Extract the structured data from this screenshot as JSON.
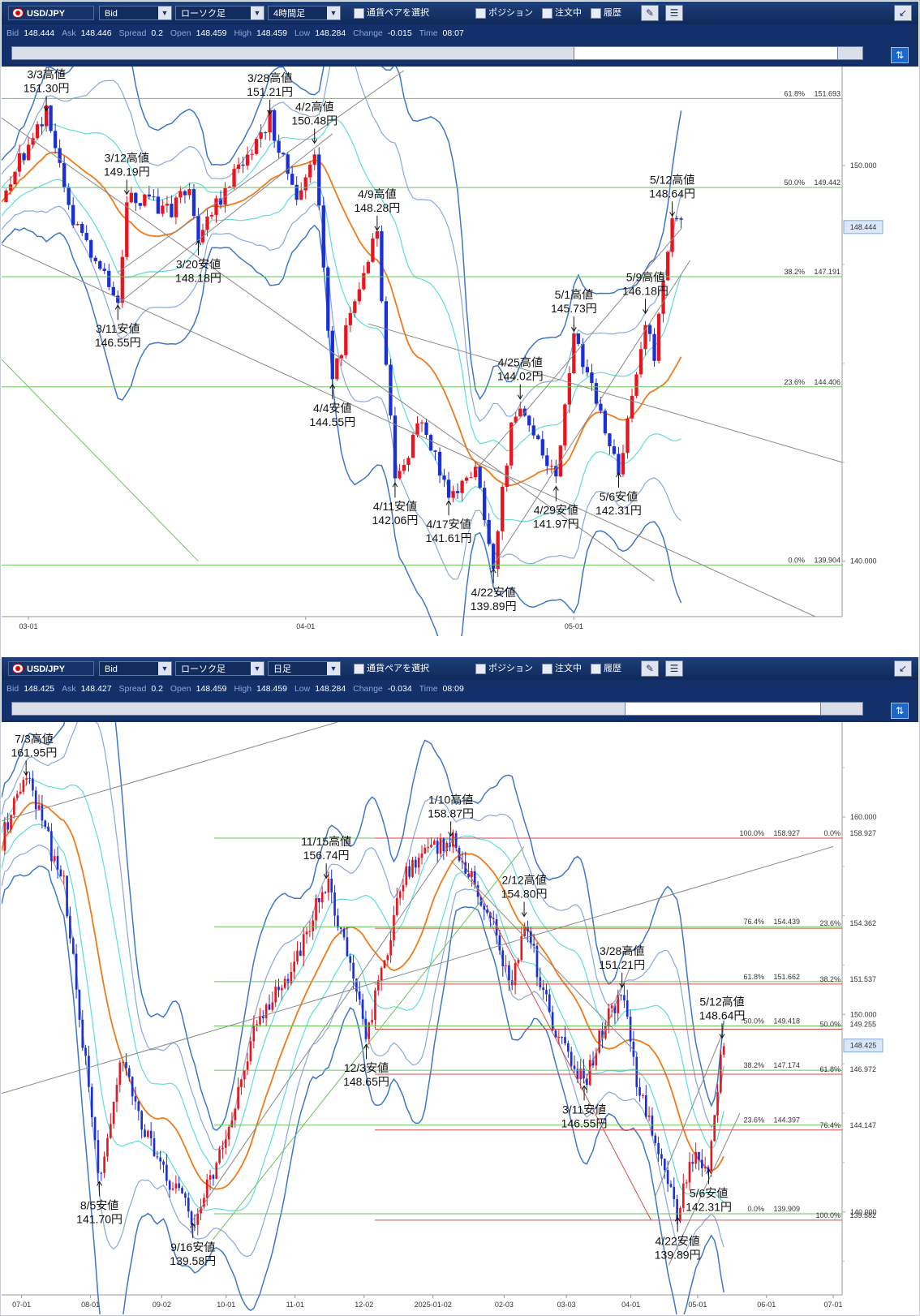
{
  "panels": [
    {
      "id": "top",
      "toolbar": {
        "pair": "USD/JPY",
        "price_type": "Bid",
        "chart_style": "ローソク足",
        "timeframe": "4時間足",
        "pair_select_label": "通貨ペアを選択",
        "position_label": "ポジション",
        "orders_label": "注文中",
        "history_label": "履歴"
      },
      "quote": {
        "bid_label": "Bid",
        "bid": "148.444",
        "ask_label": "Ask",
        "ask": "148.446",
        "spread_label": "Spread",
        "spread": "0.2",
        "open_label": "Open",
        "open": "148.459",
        "high_label": "High",
        "high": "148.459",
        "low_label": "Low",
        "low": "148.284",
        "change_label": "Change",
        "change": "-0.015",
        "time_label": "Time",
        "time": "08:07"
      },
      "scroll_position": {
        "start": 0.66,
        "end": 0.97
      }
    },
    {
      "id": "bottom",
      "toolbar": {
        "pair": "USD/JPY",
        "price_type": "Bid",
        "chart_style": "ローソク足",
        "timeframe": "日足",
        "pair_select_label": "通貨ペアを選択",
        "position_label": "ポジション",
        "orders_label": "注文中",
        "history_label": "履歴"
      },
      "quote": {
        "bid_label": "Bid",
        "bid": "148.425",
        "ask_label": "Ask",
        "ask": "148.427",
        "spread_label": "Spread",
        "spread": "0.2",
        "open_label": "Open",
        "open": "148.459",
        "high_label": "High",
        "high": "148.459",
        "low_label": "Low",
        "low": "148.284",
        "change_label": "Change",
        "change": "-0.034",
        "time_label": "Time",
        "time": "08:09"
      },
      "scroll_position": {
        "start": 0.72,
        "end": 0.95
      }
    }
  ],
  "chart_data": [
    {
      "type": "candlestick",
      "timeframe": "4時間足",
      "title": "",
      "ylim": [
        138.6,
        152.5
      ],
      "x_range": [
        "2025-02-26",
        "2025-05-31"
      ],
      "x_ticks": [
        "03-01",
        "04-01",
        "05-01"
      ],
      "x_tick_dates": [
        "2025-03-01",
        "2025-04-01",
        "2025-05-01"
      ],
      "y_ticks": [
        "150.000",
        "140.000"
      ],
      "current_price": "148.444",
      "current_price_value": 148.444,
      "close_path": [
        [
          "2025-02-26",
          149.3
        ],
        [
          "2025-03-03",
          151.3
        ],
        [
          "2025-03-06",
          148.5
        ],
        [
          "2025-03-11",
          146.55
        ],
        [
          "2025-03-12",
          149.19
        ],
        [
          "2025-03-17",
          148.9
        ],
        [
          "2025-03-19",
          149.4
        ],
        [
          "2025-03-20",
          148.18
        ],
        [
          "2025-03-24",
          149.8
        ],
        [
          "2025-03-28",
          151.21
        ],
        [
          "2025-03-31",
          149.0
        ],
        [
          "2025-04-02",
          150.48
        ],
        [
          "2025-04-04",
          144.55
        ],
        [
          "2025-04-07",
          147.0
        ],
        [
          "2025-04-09",
          148.28
        ],
        [
          "2025-04-11",
          142.06
        ],
        [
          "2025-04-14",
          143.6
        ],
        [
          "2025-04-17",
          141.61
        ],
        [
          "2025-04-20",
          142.4
        ],
        [
          "2025-04-22",
          139.89
        ],
        [
          "2025-04-24",
          143.5
        ],
        [
          "2025-04-25",
          144.02
        ],
        [
          "2025-04-29",
          141.97
        ],
        [
          "2025-05-01",
          145.73
        ],
        [
          "2025-05-06",
          142.31
        ],
        [
          "2025-05-09",
          146.18
        ],
        [
          "2025-05-10",
          145.2
        ],
        [
          "2025-05-12",
          148.64
        ],
        [
          "2025-05-13",
          148.44
        ]
      ],
      "fib_levels": [
        {
          "pct": "61.8%",
          "price": "151.693",
          "value": 151.693
        },
        {
          "pct": "50.0%",
          "price": "149.442",
          "value": 149.442
        },
        {
          "pct": "38.2%",
          "price": "147.191",
          "value": 147.191
        },
        {
          "pct": "23.6%",
          "price": "144.406",
          "value": 144.406
        },
        {
          "pct": "0.0%",
          "price": "139.904",
          "value": 139.904
        }
      ],
      "annotations": [
        {
          "label": "3/3高値",
          "price": "151.30円",
          "date": "2025-03-03",
          "value": 151.3,
          "kind": "high"
        },
        {
          "label": "3/12高値",
          "price": "149.19円",
          "date": "2025-03-12",
          "value": 149.19,
          "kind": "high"
        },
        {
          "label": "3/11安値",
          "price": "146.55円",
          "date": "2025-03-11",
          "value": 146.55,
          "kind": "low"
        },
        {
          "label": "3/20安値",
          "price": "148.18円",
          "date": "2025-03-20",
          "value": 148.18,
          "kind": "low"
        },
        {
          "label": "3/28高値",
          "price": "151.21円",
          "date": "2025-03-28",
          "value": 151.21,
          "kind": "high"
        },
        {
          "label": "4/2高値",
          "price": "150.48円",
          "date": "2025-04-02",
          "value": 150.48,
          "kind": "high"
        },
        {
          "label": "4/4安値",
          "price": "144.55円",
          "date": "2025-04-04",
          "value": 144.55,
          "kind": "low"
        },
        {
          "label": "4/9高値",
          "price": "148.28円",
          "date": "2025-04-09",
          "value": 148.28,
          "kind": "high"
        },
        {
          "label": "4/11安値",
          "price": "142.06円",
          "date": "2025-04-11",
          "value": 142.06,
          "kind": "low"
        },
        {
          "label": "4/17安値",
          "price": "141.61円",
          "date": "2025-04-17",
          "value": 141.61,
          "kind": "low"
        },
        {
          "label": "4/22安値",
          "price": "139.89円",
          "date": "2025-04-22",
          "value": 139.89,
          "kind": "low"
        },
        {
          "label": "4/25高値",
          "price": "144.02円",
          "date": "2025-04-25",
          "value": 144.02,
          "kind": "high"
        },
        {
          "label": "4/29安値",
          "price": "141.97円",
          "date": "2025-04-29",
          "value": 141.97,
          "kind": "low"
        },
        {
          "label": "5/1高値",
          "price": "145.73円",
          "date": "2025-05-01",
          "value": 145.73,
          "kind": "high"
        },
        {
          "label": "5/6安値",
          "price": "142.31円",
          "date": "2025-05-06",
          "value": 142.31,
          "kind": "low"
        },
        {
          "label": "5/9高値",
          "price": "146.18円",
          "date": "2025-05-09",
          "value": 146.18,
          "kind": "high"
        },
        {
          "label": "5/12高値",
          "price": "148.64円",
          "date": "2025-05-12",
          "value": 148.64,
          "kind": "high"
        }
      ]
    },
    {
      "type": "candlestick",
      "timeframe": "日足",
      "title": "",
      "ylim": [
        135.8,
        164.8
      ],
      "x_range": [
        "2024-06-22",
        "2025-07-05"
      ],
      "x_ticks": [
        "07-01",
        "08-01",
        "09-02",
        "10-01",
        "11-01",
        "12-02",
        "2025-01-02",
        "02-03",
        "03-03",
        "04-01",
        "05-01",
        "06-01",
        "07-01"
      ],
      "x_tick_dates": [
        "2024-07-01",
        "2024-08-01",
        "2024-09-02",
        "2024-10-01",
        "2024-11-01",
        "2024-12-02",
        "2025-01-02",
        "2025-02-03",
        "2025-03-03",
        "2025-04-01",
        "2025-05-01",
        "2025-06-01",
        "2025-07-01"
      ],
      "y_ticks": [
        "160.000",
        "150.000",
        "140.000"
      ],
      "current_price": "148.425",
      "current_price_value": 148.425,
      "close_path": [
        [
          "2024-06-22",
          158.8
        ],
        [
          "2024-07-03",
          161.95
        ],
        [
          "2024-07-20",
          156.5
        ],
        [
          "2024-08-05",
          141.7
        ],
        [
          "2024-08-15",
          147.5
        ],
        [
          "2024-08-25",
          144.0
        ],
        [
          "2024-09-16",
          139.58
        ],
        [
          "2024-09-27",
          142.2
        ],
        [
          "2024-10-15",
          149.8
        ],
        [
          "2024-10-31",
          152.5
        ],
        [
          "2024-11-15",
          156.74
        ],
        [
          "2024-11-25",
          153.0
        ],
        [
          "2024-12-03",
          148.65
        ],
        [
          "2024-12-20",
          157.3
        ],
        [
          "2025-01-10",
          158.87
        ],
        [
          "2025-01-27",
          155.0
        ],
        [
          "2025-02-07",
          151.5
        ],
        [
          "2025-02-12",
          154.8
        ],
        [
          "2025-02-25",
          149.5
        ],
        [
          "2025-03-11",
          146.55
        ],
        [
          "2025-03-20",
          149.5
        ],
        [
          "2025-03-28",
          151.21
        ],
        [
          "2025-04-04",
          146.5
        ],
        [
          "2025-04-22",
          139.89
        ],
        [
          "2025-04-30",
          143.0
        ],
        [
          "2025-05-06",
          142.31
        ],
        [
          "2025-05-12",
          148.64
        ],
        [
          "2025-05-13",
          148.43
        ]
      ],
      "fib_levels_left": [
        {
          "pct": "100.0%",
          "price": "158.927",
          "value": 158.927
        },
        {
          "pct": "76.4%",
          "price": "154.439",
          "value": 154.439
        },
        {
          "pct": "61.8%",
          "price": "151.662",
          "value": 151.662
        },
        {
          "pct": "50.0%",
          "price": "149.418",
          "value": 149.418
        },
        {
          "pct": "38.2%",
          "price": "147.174",
          "value": 147.174
        },
        {
          "pct": "23.6%",
          "price": "144.397",
          "value": 144.397
        },
        {
          "pct": "0.0%",
          "price": "139.909",
          "value": 139.909
        }
      ],
      "fib_levels_right": [
        {
          "pct": "0.0%",
          "price": "158.927",
          "value": 158.927
        },
        {
          "pct": "23.6%",
          "price": "154.362",
          "value": 154.362
        },
        {
          "pct": "38.2%",
          "price": "151.537",
          "value": 151.537
        },
        {
          "pct": "50.0%",
          "price": "149.255",
          "value": 149.255
        },
        {
          "pct": "61.8%",
          "price": "146.972",
          "value": 146.972
        },
        {
          "pct": "76.4%",
          "price": "144.147",
          "value": 144.147
        },
        {
          "pct": "100.0%",
          "price": "139.582",
          "value": 139.582
        }
      ],
      "annotations": [
        {
          "label": "7/3高値",
          "price": "161.95円",
          "date": "2024-07-03",
          "value": 161.95,
          "kind": "high"
        },
        {
          "label": "8/5安値",
          "price": "141.70円",
          "date": "2024-08-05",
          "value": 141.7,
          "kind": "low"
        },
        {
          "label": "9/16安値",
          "price": "139.58円",
          "date": "2024-09-16",
          "value": 139.58,
          "kind": "low"
        },
        {
          "label": "11/15高値",
          "price": "156.74円",
          "date": "2024-11-15",
          "value": 156.74,
          "kind": "high"
        },
        {
          "label": "12/3安値",
          "price": "148.65円",
          "date": "2024-12-03",
          "value": 148.65,
          "kind": "low"
        },
        {
          "label": "1/10高値",
          "price": "158.87円",
          "date": "2025-01-10",
          "value": 158.87,
          "kind": "high"
        },
        {
          "label": "2/12高値",
          "price": "154.80円",
          "date": "2025-02-12",
          "value": 154.8,
          "kind": "high"
        },
        {
          "label": "3/11安値",
          "price": "146.55円",
          "date": "2025-03-11",
          "value": 146.55,
          "kind": "low"
        },
        {
          "label": "3/28高値",
          "price": "151.21円",
          "date": "2025-03-28",
          "value": 151.21,
          "kind": "high"
        },
        {
          "label": "4/22安値",
          "price": "139.89円",
          "date": "2025-04-22",
          "value": 139.89,
          "kind": "low"
        },
        {
          "label": "5/6安値",
          "price": "142.31円",
          "date": "2025-05-06",
          "value": 142.31,
          "kind": "low"
        },
        {
          "label": "5/12高値",
          "price": "148.64円",
          "date": "2025-05-12",
          "value": 148.64,
          "kind": "high"
        }
      ]
    }
  ],
  "colors": {
    "bull": "#e8141e",
    "bear": "#1a2fd6",
    "fib_green": "#6ac45a",
    "fib_red": "#d44a4a",
    "band_outer": "#3d78c8",
    "band_mid": "#8aa8d8",
    "band_inner": "#5fdcdc",
    "ma": "#f07a1a",
    "trend": "#888888"
  }
}
